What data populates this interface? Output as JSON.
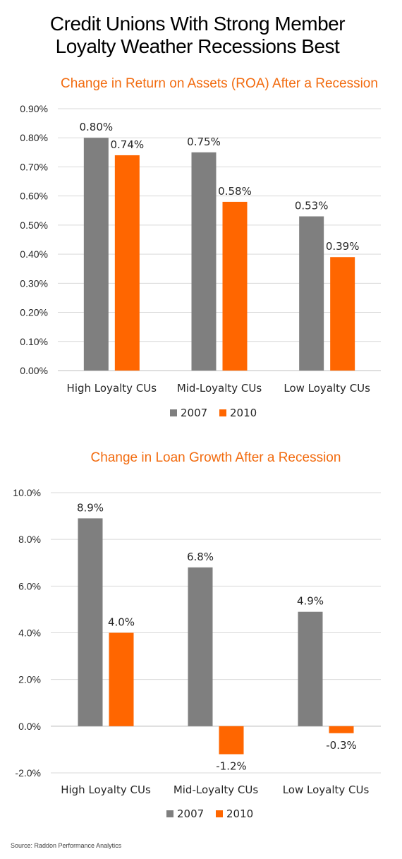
{
  "title": {
    "line1": "Credit Unions With Strong Member",
    "line2": "Loyalty Weather Recessions Best"
  },
  "colors": {
    "series_2007": "#7f7f7f",
    "series_2010": "#ff6600",
    "accent_title": "#f26b0f"
  },
  "source": "Source: Raddon Performance Analytics",
  "chart_data": [
    {
      "type": "bar",
      "title": "Change in Return on Assets (ROA) After a Recession",
      "categories": [
        "High Loyalty CUs",
        "Mid-Loyalty CUs",
        "Low Loyalty CUs"
      ],
      "series": [
        {
          "name": "2007",
          "values": [
            0.8,
            0.75,
            0.53
          ],
          "labels": [
            "0.80%",
            "0.75%",
            "0.53%"
          ]
        },
        {
          "name": "2010",
          "values": [
            0.74,
            0.58,
            0.39
          ],
          "labels": [
            "0.74%",
            "0.58%",
            "0.39%"
          ]
        }
      ],
      "yticks": [
        "0.00%",
        "0.10%",
        "0.20%",
        "0.30%",
        "0.40%",
        "0.50%",
        "0.60%",
        "0.70%",
        "0.80%",
        "0.90%"
      ],
      "ylim": [
        0,
        0.9
      ],
      "grid": true,
      "legend": "bottom"
    },
    {
      "type": "bar",
      "title": "Change in Loan Growth After a Recession",
      "categories": [
        "High Loyalty CUs",
        "Mid-Loyalty CUs",
        "Low Loyalty CUs"
      ],
      "series": [
        {
          "name": "2007",
          "values": [
            8.9,
            6.8,
            4.9
          ],
          "labels": [
            "8.9%",
            "6.8%",
            "4.9%"
          ]
        },
        {
          "name": "2010",
          "values": [
            4.0,
            -1.2,
            -0.3
          ],
          "labels": [
            "4.0%",
            "-1.2%",
            "-0.3%"
          ]
        }
      ],
      "yticks": [
        "-2.0%",
        "0.0%",
        "2.0%",
        "4.0%",
        "6.0%",
        "8.0%",
        "10.0%"
      ],
      "ylim": [
        -2,
        10
      ],
      "grid": true,
      "legend": "bottom"
    }
  ]
}
